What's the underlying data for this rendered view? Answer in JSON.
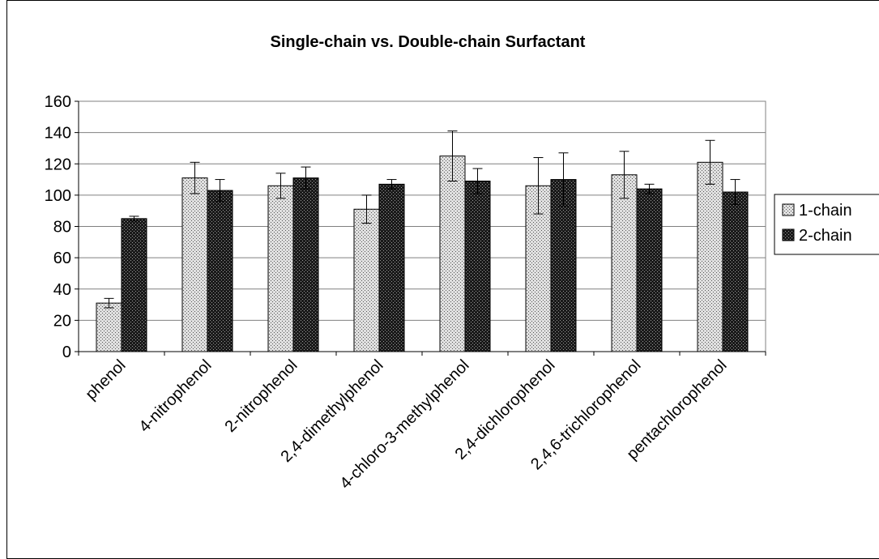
{
  "chart_data": {
    "type": "bar",
    "title": "Single-chain vs. Double-chain Surfactant",
    "categories": [
      "phenol",
      "4-nitrophenol",
      "2-nitrophenol",
      "2,4-dimethylphenol",
      "4-chloro-3-methylphenol",
      "2,4-dichlorophenol",
      "2,4,6-trichlorophenol",
      "pentachlorophenol"
    ],
    "series": [
      {
        "name": "1-chain",
        "values": [
          31,
          111,
          106,
          91,
          125,
          106,
          113,
          121
        ],
        "error": [
          3,
          10,
          8,
          9,
          16,
          18,
          15,
          14
        ]
      },
      {
        "name": "2-chain",
        "values": [
          85,
          103,
          111,
          107,
          109,
          110,
          104,
          102
        ],
        "error": [
          1.5,
          7,
          7,
          3,
          8,
          17,
          3,
          8
        ]
      }
    ],
    "ylim": [
      0,
      160
    ],
    "yticks": [
      0,
      20,
      40,
      60,
      80,
      100,
      120,
      140,
      160
    ],
    "grid": true,
    "legend_position": "right"
  }
}
